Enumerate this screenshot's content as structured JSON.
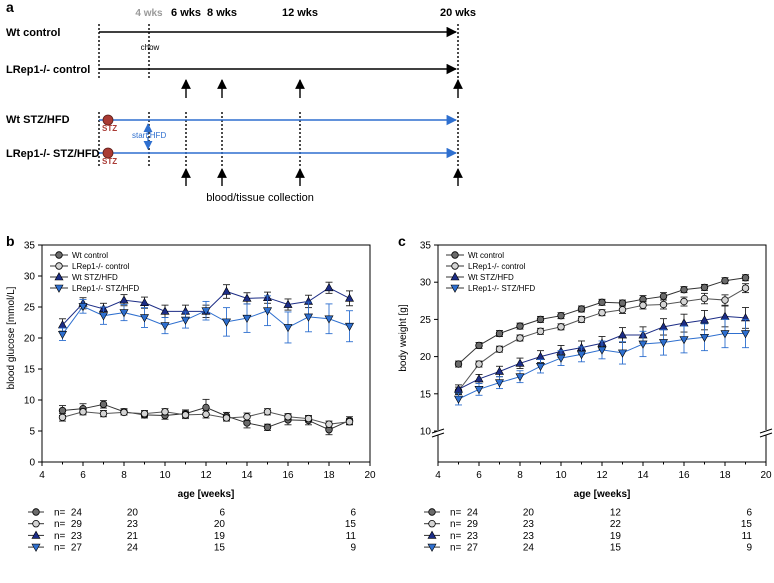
{
  "panel_a": {
    "panel_label": "a",
    "time_labels": [
      "4 wks",
      "6 wks",
      "8 wks",
      "12 wks",
      "20 wks"
    ],
    "groups": [
      "Wt control",
      "LRep1-/- control",
      "Wt STZ/HFD",
      "LRep1-/- STZ/HFD"
    ],
    "chow_label": "chow",
    "stz_label": "STZ",
    "start_hfd_label": "start HFD",
    "collection_label": "blood/tissue  collection",
    "colors": {
      "control_arrow": "#000000",
      "stz_arrow": "#2e6fcf",
      "stz_dot": "#a93a34",
      "muted": "#9a9a9a"
    }
  },
  "chart_data": [
    {
      "type": "line",
      "panel_label": "b",
      "ylabel": "blood glucose [mmol/L]",
      "xlabel": "age [weeks]",
      "xlim": [
        4,
        20
      ],
      "ylim": [
        0,
        35
      ],
      "xticks": [
        4,
        6,
        8,
        10,
        12,
        14,
        16,
        18,
        20
      ],
      "yticks": [
        0,
        5,
        10,
        15,
        20,
        25,
        30,
        35
      ],
      "x": [
        5,
        6,
        7,
        8,
        9,
        10,
        11,
        12,
        13,
        14,
        15,
        16,
        17,
        18,
        19
      ],
      "series": [
        {
          "name": "Wt control",
          "marker": "circle",
          "fill": "#6b6b6b",
          "values": [
            8.3,
            8.6,
            9.3,
            8.1,
            7.6,
            7.5,
            7.8,
            8.8,
            7.4,
            6.3,
            5.6,
            6.8,
            6.7,
            5.2,
            6.7
          ],
          "err": [
            0.8,
            0.8,
            0.6,
            0.5,
            0.5,
            0.6,
            0.6,
            1.3,
            0.6,
            0.8,
            0.5,
            0.8,
            0.7,
            0.8,
            0.6
          ]
        },
        {
          "name": "LRep1-/- control",
          "marker": "circle",
          "fill": "#d4d4d4",
          "values": [
            7.2,
            8.1,
            7.8,
            8.0,
            7.8,
            8.1,
            7.6,
            7.7,
            7.1,
            7.3,
            8.1,
            7.3,
            7.0,
            6.1,
            6.5
          ],
          "err": [
            0.6,
            0.5,
            0.5,
            0.4,
            0.5,
            0.5,
            0.6,
            0.6,
            0.5,
            0.6,
            0.5,
            0.5,
            0.5,
            0.5,
            0.5
          ]
        },
        {
          "name": "Wt STZ/HFD",
          "marker": "triangle-up",
          "fill": "#1c2d86",
          "values": [
            22.1,
            25.6,
            24.7,
            26.1,
            25.7,
            24.3,
            24.3,
            24.3,
            27.5,
            26.4,
            26.5,
            25.4,
            25.9,
            28.1,
            26.4
          ],
          "err": [
            1.0,
            0.9,
            0.9,
            0.9,
            0.9,
            1.0,
            1.0,
            1.0,
            1.1,
            0.9,
            0.9,
            0.9,
            1.0,
            0.9,
            1.2
          ]
        },
        {
          "name": "LRep1-/- STZ/HFD",
          "marker": "triangle-down",
          "fill": "#2e6fcf",
          "values": [
            20.6,
            25.1,
            23.6,
            24.1,
            23.3,
            22.0,
            22.9,
            24.4,
            22.6,
            23.2,
            24.4,
            21.7,
            23.4,
            23.1,
            21.9
          ],
          "err": [
            1.0,
            1.1,
            1.4,
            1.3,
            1.6,
            1.3,
            1.3,
            1.5,
            2.3,
            2.3,
            2.4,
            2.5,
            2.4,
            2.4,
            2.5
          ]
        }
      ],
      "legend": {
        "position": "top-left"
      },
      "n_table": [
        {
          "label": "n=",
          "counts": [
            "24",
            "20",
            "6",
            "6"
          ]
        },
        {
          "label": "n=",
          "counts": [
            "29",
            "23",
            "20",
            "15"
          ]
        },
        {
          "label": "n=",
          "counts": [
            "23",
            "21",
            "19",
            "11"
          ]
        },
        {
          "label": "n=",
          "counts": [
            "27",
            "24",
            "15",
            "9"
          ]
        }
      ]
    },
    {
      "type": "line",
      "panel_label": "c",
      "ylabel": "body weight [g]",
      "xlabel": "age [weeks]",
      "xlim": [
        4,
        20
      ],
      "ylim": [
        10,
        35
      ],
      "axis_break": [
        0,
        10
      ],
      "xticks": [
        4,
        6,
        8,
        10,
        12,
        14,
        16,
        18,
        20
      ],
      "yticks": [
        10,
        15,
        20,
        25,
        30,
        35
      ],
      "x": [
        5,
        6,
        7,
        8,
        9,
        10,
        11,
        12,
        13,
        14,
        15,
        16,
        17,
        18,
        19
      ],
      "series": [
        {
          "name": "Wt control",
          "marker": "circle",
          "fill": "#6b6b6b",
          "values": [
            19.0,
            21.5,
            23.1,
            24.1,
            25.0,
            25.5,
            26.4,
            27.3,
            27.2,
            27.7,
            28.1,
            29.0,
            29.3,
            30.2,
            30.6
          ],
          "err": [
            0.4,
            0.4,
            0.4,
            0.4,
            0.4,
            0.4,
            0.4,
            0.4,
            0.4,
            0.5,
            0.5,
            0.4,
            0.4,
            0.4,
            0.4
          ]
        },
        {
          "name": "LRep1-/- control",
          "marker": "circle",
          "fill": "#d4d4d4",
          "values": [
            15.4,
            19.0,
            21.0,
            22.5,
            23.4,
            24.0,
            25.0,
            25.9,
            26.3,
            26.9,
            27.0,
            27.4,
            27.8,
            27.6,
            29.2
          ],
          "err": [
            0.5,
            0.4,
            0.4,
            0.4,
            0.4,
            0.4,
            0.4,
            0.4,
            0.5,
            0.5,
            0.6,
            0.6,
            0.7,
            0.7,
            0.6
          ]
        },
        {
          "name": "Wt STZ/HFD",
          "marker": "triangle-up",
          "fill": "#1c2d86",
          "values": [
            15.6,
            17.0,
            18.0,
            19.1,
            20.0,
            20.7,
            21.2,
            21.8,
            22.9,
            22.9,
            24.0,
            24.5,
            24.9,
            25.4,
            25.2
          ],
          "err": [
            0.6,
            0.6,
            0.7,
            0.7,
            0.8,
            0.8,
            0.9,
            0.9,
            1.0,
            1.1,
            1.1,
            1.2,
            1.3,
            1.4,
            1.4
          ]
        },
        {
          "name": "LRep1-/- STZ/HFD",
          "marker": "triangle-down",
          "fill": "#2e6fcf",
          "values": [
            14.3,
            15.6,
            16.5,
            17.3,
            18.7,
            19.8,
            20.3,
            20.9,
            20.5,
            21.7,
            21.9,
            22.3,
            22.6,
            23.1,
            23.1
          ],
          "err": [
            0.8,
            0.8,
            0.8,
            0.8,
            0.9,
            1.0,
            1.0,
            1.2,
            1.5,
            1.7,
            1.7,
            1.8,
            1.8,
            1.9,
            1.9
          ]
        }
      ],
      "legend": {
        "position": "top-left"
      },
      "n_table": [
        {
          "label": "n=",
          "counts": [
            "24",
            "20",
            "12",
            "6"
          ]
        },
        {
          "label": "n=",
          "counts": [
            "29",
            "23",
            "22",
            "15"
          ]
        },
        {
          "label": "n=",
          "counts": [
            "23",
            "23",
            "19",
            "11"
          ]
        },
        {
          "label": "n=",
          "counts": [
            "27",
            "24",
            "15",
            "9"
          ]
        }
      ]
    }
  ]
}
